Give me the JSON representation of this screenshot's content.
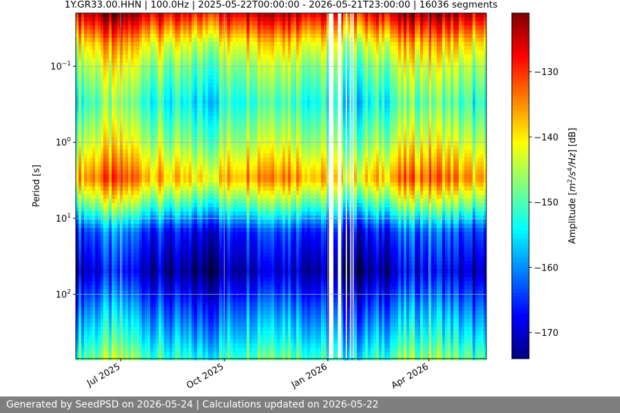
{
  "chart_data": {
    "type": "heatmap",
    "title": "1Y.GR33.00.HHN | 100.0Hz | 2025-05-22T00:00:00 - 2026-05-21T23:00:00 | 16036 segments",
    "xlabel": "",
    "ylabel": "Period [s]",
    "x_range": [
      "2025-05-22",
      "2026-05-21"
    ],
    "x_ticks": [
      "Jul 2025",
      "Oct 2025",
      "Jan 2026",
      "Apr 2026"
    ],
    "x_tick_dates": [
      "2025-07-01",
      "2025-10-01",
      "2026-01-01",
      "2026-04-01"
    ],
    "y_scale": "log",
    "y_inverted": true,
    "y_range": [
      0.02,
      700
    ],
    "y_ticks": [
      {
        "base": "10",
        "exp": "−1",
        "value": 0.1
      },
      {
        "base": "10",
        "exp": "0",
        "value": 1
      },
      {
        "base": "10",
        "exp": "1",
        "value": 10
      },
      {
        "base": "10",
        "exp": "2",
        "value": 100
      }
    ],
    "grid": true,
    "colormap": "jet",
    "colorbar": {
      "label_prefix": "Amplitude [",
      "label_unit": "m",
      "label_sup1": "2",
      "label_mid": "/s",
      "label_sup2": "4",
      "label_end": "/Hz",
      "label_suffix": "] [dB]",
      "range": [
        -174,
        -121
      ],
      "ticks": [
        -130,
        -140,
        -150,
        -160,
        -170
      ],
      "tick_labels": [
        "−130",
        "−140",
        "−150",
        "−160",
        "−170"
      ]
    },
    "gaps": [
      {
        "start": "2026-01-02",
        "end": "2026-01-06"
      },
      {
        "start": "2026-01-10",
        "end": "2026-01-13"
      },
      {
        "start": "2026-01-17",
        "end": "2026-01-18"
      },
      {
        "start": "2026-01-21",
        "end": "2026-01-22"
      },
      {
        "start": "2026-01-23",
        "end": "2026-01-24"
      }
    ],
    "amplitude_profile": [
      {
        "period": 0.02,
        "db": -125
      },
      {
        "period": 0.03,
        "db": -132
      },
      {
        "period": 0.05,
        "db": -140
      },
      {
        "period": 0.1,
        "db": -146
      },
      {
        "period": 0.3,
        "db": -152
      },
      {
        "period": 1.0,
        "db": -145
      },
      {
        "period": 3.0,
        "db": -136
      },
      {
        "period": 7.0,
        "db": -150
      },
      {
        "period": 15,
        "db": -165
      },
      {
        "period": 50,
        "db": -171
      },
      {
        "period": 150,
        "db": -162
      },
      {
        "period": 400,
        "db": -155
      },
      {
        "period": 700,
        "db": -150
      }
    ],
    "colors": {
      "gap": "#ffffff",
      "grid": "#b0b0b0"
    }
  },
  "footer": {
    "text": "Generated by SeedPSD on 2026-05-24 | Calculations updated on 2026-05-22"
  }
}
